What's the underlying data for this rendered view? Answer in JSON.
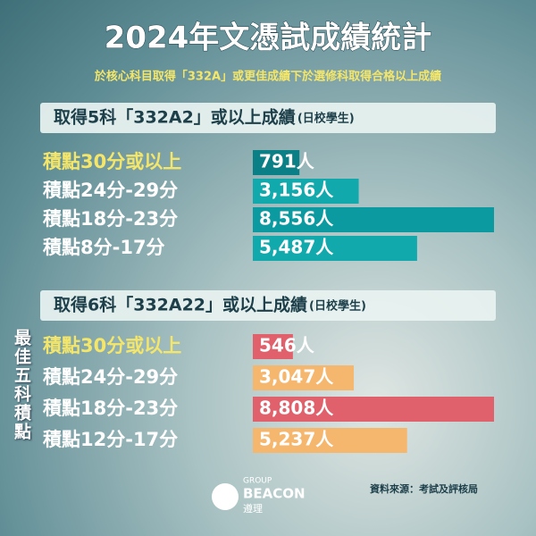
{
  "title": "2024年文憑試成績統計",
  "subtitle": "於核心科目取得「332A」或更佳成績下於選修科取得合格以上成績",
  "side_label": "最佳五科積點",
  "source": "資料來源：考試及評核局",
  "logo": {
    "group": "GROUP",
    "brand": "BEACON",
    "chinese": "遵理"
  },
  "chart_data": [
    {
      "type": "bar",
      "orientation": "horizontal",
      "title": "取得5科「332A2」或以上成績",
      "subtitle": "(日校學生)",
      "categories": [
        "積點30分或以上",
        "積點24分-29分",
        "積點18分-23分",
        "積點8分-17分"
      ],
      "values": [
        791,
        3156,
        8556,
        5487
      ],
      "value_labels": [
        "791人",
        "3,156人",
        "8,556人",
        "5,487人"
      ],
      "colors": [
        "#0b7f86",
        "#12a9ad",
        "#0b9aa0",
        "#12a9ad"
      ],
      "label_colors": [
        "#f4e66a",
        "#ffffff",
        "#ffffff",
        "#ffffff"
      ]
    },
    {
      "type": "bar",
      "orientation": "horizontal",
      "title": "取得6科「332A22」或以上成績",
      "subtitle": "(日校學生)",
      "categories": [
        "積點30分或以上",
        "積點24分-29分",
        "積點18分-23分",
        "積點12分-17分"
      ],
      "values": [
        546,
        3047,
        8808,
        5237
      ],
      "value_labels": [
        "546人",
        "3,047人",
        "8,808人",
        "5,237人"
      ],
      "colors": [
        "#e0616b",
        "#f5b66e",
        "#e0616b",
        "#f5b66e"
      ],
      "label_colors": [
        "#f4e66a",
        "#ffffff",
        "#ffffff",
        "#ffffff"
      ]
    }
  ]
}
